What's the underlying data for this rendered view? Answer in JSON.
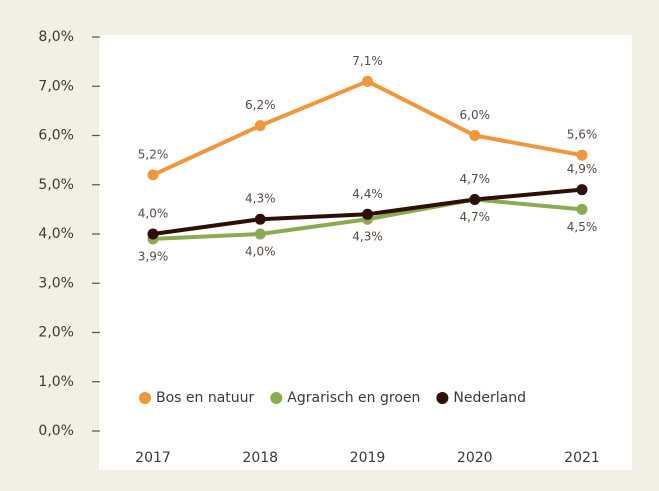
{
  "chart_data": {
    "type": "line",
    "categories": [
      "2017",
      "2018",
      "2019",
      "2020",
      "2021"
    ],
    "series": [
      {
        "name": "Bos en natuur",
        "color": "#f0963c",
        "values": [
          5.2,
          6.2,
          7.1,
          6.0,
          5.6
        ],
        "value_labels": [
          "5,2%",
          "6,2%",
          "7,1%",
          "6,0%",
          "5,6%"
        ]
      },
      {
        "name": "Agrarisch en groen",
        "color": "#8aab4f",
        "values": [
          3.9,
          4.0,
          4.3,
          4.7,
          4.5
        ],
        "value_labels": [
          "3,9%",
          "4,0%",
          "4,3%",
          "4,7%",
          "4,5%"
        ]
      },
      {
        "name": "Nederland",
        "color": "#2e0f05",
        "values": [
          4.0,
          4.3,
          4.4,
          4.7,
          4.9
        ],
        "value_labels": [
          "4,0%",
          "4,3%",
          "4,4%",
          "4,7%",
          "4,9%"
        ]
      }
    ],
    "ylim": [
      0,
      8
    ],
    "yticks": [
      {
        "value": 0,
        "label": "0,0%"
      },
      {
        "value": 1,
        "label": "1,0%"
      },
      {
        "value": 2,
        "label": "2,0%"
      },
      {
        "value": 3,
        "label": "3,0%"
      },
      {
        "value": 4,
        "label": "4,0%"
      },
      {
        "value": 5,
        "label": "5,0%"
      },
      {
        "value": 6,
        "label": "6,0%"
      },
      {
        "value": 7,
        "label": "7,0%"
      },
      {
        "value": 8,
        "label": "8,0%"
      }
    ],
    "legend": "bottom"
  }
}
